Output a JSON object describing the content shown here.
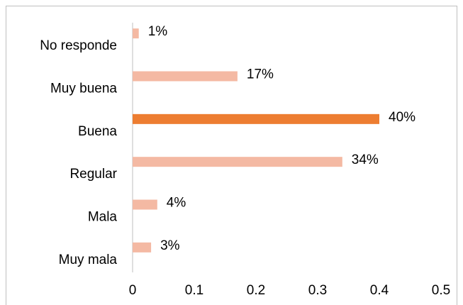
{
  "chart_data": {
    "type": "hbar",
    "categories": [
      "No responde",
      "Muy buena",
      "Buena",
      "Regular",
      "Mala",
      "Muy mala"
    ],
    "values": [
      0.01,
      0.17,
      0.4,
      0.34,
      0.04,
      0.03
    ],
    "value_labels": [
      "1%",
      "17%",
      "40%",
      "34%",
      "4%",
      "3%"
    ],
    "colors": [
      "#f4b9a3",
      "#f4b9a3",
      "#ed7d31",
      "#f4b9a3",
      "#f4b9a3",
      "#f4b9a3"
    ],
    "xlim": [
      0,
      0.5
    ],
    "xticks": [
      0,
      0.1,
      0.2,
      0.3,
      0.4,
      0.5
    ]
  }
}
